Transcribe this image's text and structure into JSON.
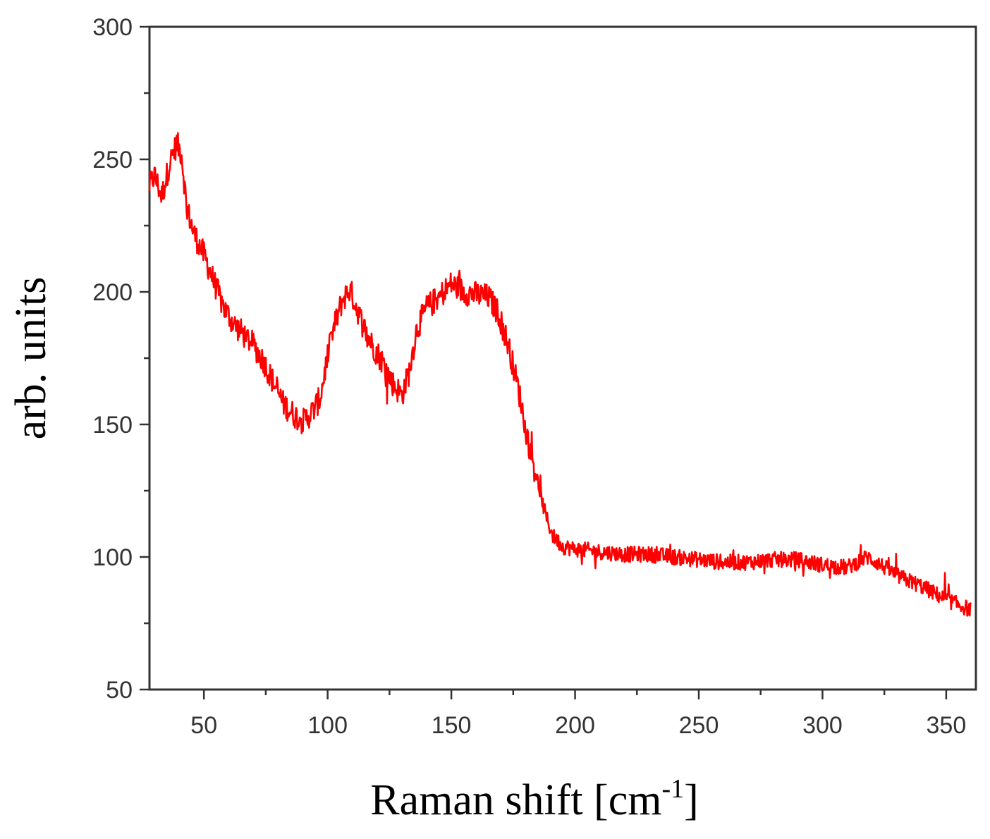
{
  "chart_data": {
    "type": "line",
    "title": "",
    "xlabel": "Raman shift [cm",
    "xlabel_superscript": "-1",
    "xlabel_suffix": "]",
    "ylabel": "arb. units",
    "xlim": [
      28,
      362
    ],
    "ylim": [
      50,
      300
    ],
    "x_ticks": [
      50,
      100,
      150,
      200,
      250,
      300,
      350
    ],
    "x_tick_labels": [
      "50",
      "100",
      "150",
      "200",
      "250",
      "300",
      "350"
    ],
    "y_ticks": [
      50,
      100,
      150,
      200,
      250,
      300
    ],
    "y_tick_labels": [
      "50",
      "100",
      "150",
      "200",
      "250",
      "300"
    ],
    "grid": false,
    "legend": "none",
    "series": [
      {
        "color": "#ff0000",
        "x": [
          28,
          30,
          33,
          36,
          39,
          41,
          43,
          46,
          50,
          54,
          58,
          62,
          66,
          70,
          74,
          78,
          82,
          86,
          90,
          94,
          97,
          100,
          103,
          106,
          109,
          111,
          114,
          118,
          122,
          126,
          130,
          133,
          136,
          140,
          145,
          150,
          155,
          160,
          165,
          169,
          173,
          177,
          181,
          185,
          188,
          191,
          195,
          200,
          210,
          220,
          230,
          240,
          250,
          260,
          270,
          280,
          290,
          300,
          310,
          318,
          322,
          330,
          340,
          350,
          360
        ],
        "y": [
          240,
          244,
          236,
          248,
          256,
          252,
          232,
          222,
          214,
          204,
          194,
          188,
          184,
          180,
          174,
          166,
          158,
          154,
          151,
          155,
          160,
          176,
          188,
          197,
          201,
          196,
          188,
          180,
          174,
          166,
          161,
          170,
          186,
          194,
          198,
          203,
          200,
          199,
          198,
          192,
          180,
          164,
          144,
          128,
          116,
          108,
          104,
          103,
          102,
          101,
          101,
          100,
          99,
          98,
          98,
          99,
          99,
          97,
          96,
          100,
          98,
          93,
          89,
          84,
          80
        ]
      }
    ]
  }
}
